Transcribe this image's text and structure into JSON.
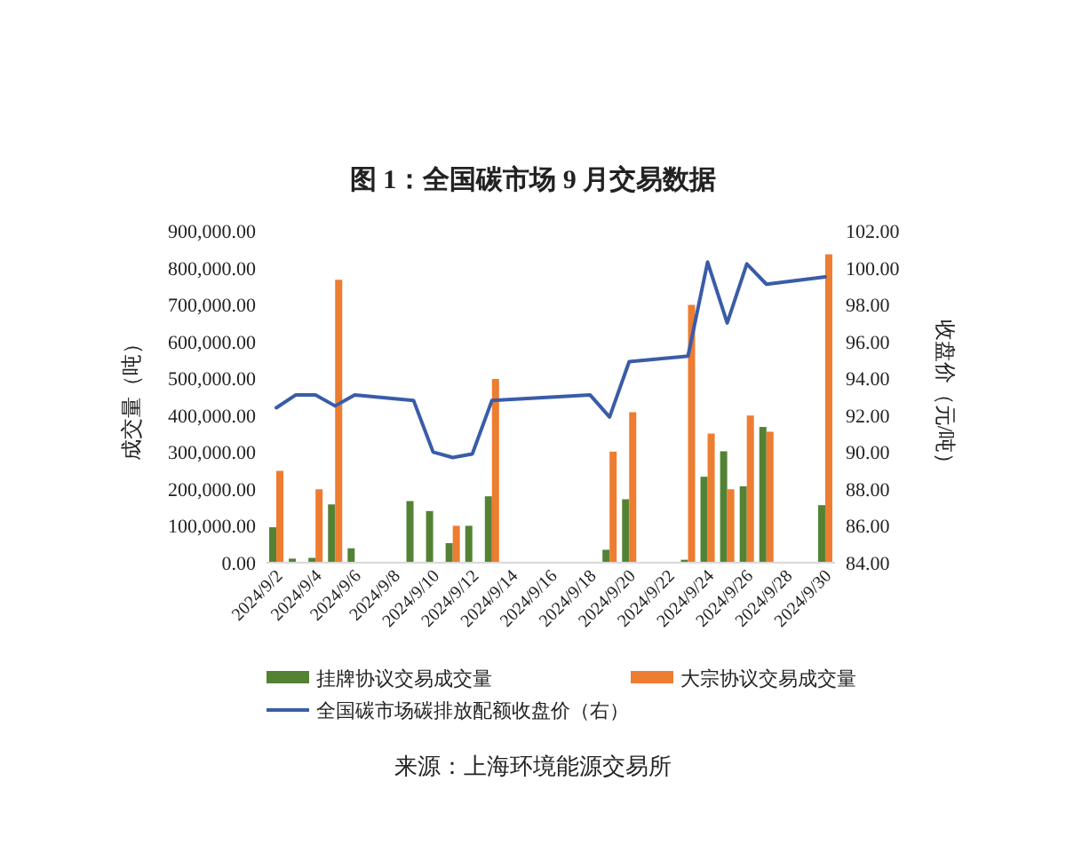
{
  "chart_data": {
    "type": "bar",
    "title": "图 1：全国碳市场 9 月交易数据",
    "ylabel": "成交量（吨）",
    "y2label": "收盘价（元/吨）",
    "categories": [
      "2024/9/2",
      null,
      "2024/9/4",
      null,
      "2024/9/6",
      null,
      "2024/9/8",
      null,
      "2024/9/10",
      null,
      "2024/9/12",
      null,
      "2024/9/14",
      null,
      "2024/9/16",
      null,
      "2024/9/18",
      null,
      "2024/9/20",
      null,
      "2024/9/22",
      null,
      "2024/9/24",
      null,
      "2024/9/26",
      null,
      "2024/9/28",
      null,
      "2024/9/30"
    ],
    "series": [
      {
        "name": "挂牌协议交易成交量",
        "color": "#548235",
        "values": [
          96000,
          11000,
          13000,
          158000,
          39000,
          null,
          null,
          167000,
          140000,
          53000,
          100000,
          180000,
          null,
          null,
          null,
          null,
          2000,
          35000,
          172000,
          null,
          null,
          8000,
          233000,
          302000,
          207000,
          368000,
          null,
          null,
          156000
        ]
      },
      {
        "name": "大宗协议交易成交量",
        "color": "#ed7d31",
        "values": [
          249000,
          null,
          199000,
          767000,
          null,
          null,
          null,
          null,
          null,
          100000,
          null,
          498000,
          null,
          null,
          null,
          null,
          null,
          301000,
          408000,
          null,
          null,
          699000,
          350000,
          199000,
          399000,
          355000,
          null,
          null,
          836000
        ]
      },
      {
        "name": "全国碳市场碳排放配额收盘价（右）",
        "color": "#3a5ca8",
        "type": "line",
        "axis": "y2",
        "values": [
          92.4,
          93.1,
          93.1,
          92.5,
          93.1,
          null,
          null,
          92.8,
          90.0,
          89.7,
          89.9,
          92.8,
          null,
          null,
          null,
          null,
          93.1,
          91.9,
          94.9,
          null,
          null,
          95.2,
          100.3,
          97.0,
          100.2,
          99.1,
          null,
          null,
          99.5
        ]
      }
    ],
    "ylim": [
      0,
      900000
    ],
    "yticks": [
      {
        "value": 0,
        "label": "0.00"
      },
      {
        "value": 100000,
        "label": "100,000.00"
      },
      {
        "value": 200000,
        "label": "200,000.00"
      },
      {
        "value": 300000,
        "label": "300,000.00"
      },
      {
        "value": 400000,
        "label": "400,000.00"
      },
      {
        "value": 500000,
        "label": "500,000.00"
      },
      {
        "value": 600000,
        "label": "600,000.00"
      },
      {
        "value": 700000,
        "label": "700,000.00"
      },
      {
        "value": 800000,
        "label": "800,000.00"
      },
      {
        "value": 900000,
        "label": "900,000.00"
      }
    ],
    "y2lim": [
      84,
      102
    ],
    "y2ticks": [
      {
        "value": 84,
        "label": "84.00"
      },
      {
        "value": 86,
        "label": "86.00"
      },
      {
        "value": 88,
        "label": "88.00"
      },
      {
        "value": 90,
        "label": "90.00"
      },
      {
        "value": 92,
        "label": "92.00"
      },
      {
        "value": 94,
        "label": "94.00"
      },
      {
        "value": 96,
        "label": "96.00"
      },
      {
        "value": 98,
        "label": "98.00"
      },
      {
        "value": 100,
        "label": "100.00"
      },
      {
        "value": 102,
        "label": "102.00"
      }
    ],
    "legend": "bottom",
    "annotations": [
      "来源：上海环境能源交易所"
    ]
  }
}
